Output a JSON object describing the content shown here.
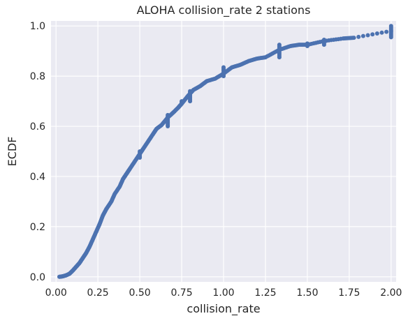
{
  "chart_data": {
    "type": "scatter",
    "title": "ALOHA collision_rate 2 stations",
    "xlabel": "collision_rate",
    "ylabel": "ECDF",
    "xlim": [
      -0.03,
      2.03
    ],
    "ylim": [
      -0.02,
      1.02
    ],
    "xticks": [
      0.0,
      0.25,
      0.5,
      0.75,
      1.0,
      1.25,
      1.5,
      1.75,
      2.0
    ],
    "xtick_labels": [
      "0.00",
      "0.25",
      "0.50",
      "0.75",
      "1.00",
      "1.25",
      "1.50",
      "1.75",
      "2.00"
    ],
    "yticks": [
      0.0,
      0.2,
      0.4,
      0.6,
      0.8,
      1.0
    ],
    "ytick_labels": [
      "0.0",
      "0.2",
      "0.4",
      "0.6",
      "0.8",
      "1.0"
    ],
    "grid": true,
    "marker_color": "#4c72b0",
    "background_color": "#eaeaf2",
    "gridline_color": "#ffffff",
    "series": [
      {
        "points": [
          {
            "x": 0.02,
            "y": 0.0
          },
          {
            "x": 0.04,
            "y": 0.002
          },
          {
            "x": 0.06,
            "y": 0.006
          },
          {
            "x": 0.08,
            "y": 0.012
          },
          {
            "x": 0.1,
            "y": 0.025
          },
          {
            "x": 0.12,
            "y": 0.04
          },
          {
            "x": 0.14,
            "y": 0.055
          },
          {
            "x": 0.16,
            "y": 0.075
          },
          {
            "x": 0.18,
            "y": 0.095
          },
          {
            "x": 0.2,
            "y": 0.12
          },
          {
            "x": 0.22,
            "y": 0.15
          },
          {
            "x": 0.24,
            "y": 0.18
          },
          {
            "x": 0.26,
            "y": 0.21
          },
          {
            "x": 0.28,
            "y": 0.245
          },
          {
            "x": 0.3,
            "y": 0.27
          },
          {
            "x": 0.33,
            "y": 0.3
          },
          {
            "x": 0.35,
            "y": 0.33
          },
          {
            "x": 0.38,
            "y": 0.36
          },
          {
            "x": 0.4,
            "y": 0.39
          },
          {
            "x": 0.42,
            "y": 0.41
          },
          {
            "x": 0.44,
            "y": 0.43
          },
          {
            "x": 0.47,
            "y": 0.46
          },
          {
            "x": 0.5,
            "y": 0.49
          },
          {
            "x": 0.52,
            "y": 0.51
          },
          {
            "x": 0.55,
            "y": 0.54
          },
          {
            "x": 0.58,
            "y": 0.57
          },
          {
            "x": 0.6,
            "y": 0.59
          },
          {
            "x": 0.63,
            "y": 0.605
          },
          {
            "x": 0.667,
            "y": 0.635
          },
          {
            "x": 0.7,
            "y": 0.655
          },
          {
            "x": 0.73,
            "y": 0.675
          },
          {
            "x": 0.75,
            "y": 0.69
          },
          {
            "x": 0.786,
            "y": 0.72
          },
          {
            "x": 0.82,
            "y": 0.745
          },
          {
            "x": 0.86,
            "y": 0.76
          },
          {
            "x": 0.9,
            "y": 0.78
          },
          {
            "x": 0.95,
            "y": 0.79
          },
          {
            "x": 1.0,
            "y": 0.81
          },
          {
            "x": 1.05,
            "y": 0.835
          },
          {
            "x": 1.1,
            "y": 0.845
          },
          {
            "x": 1.15,
            "y": 0.86
          },
          {
            "x": 1.2,
            "y": 0.87
          },
          {
            "x": 1.25,
            "y": 0.875
          },
          {
            "x": 1.333,
            "y": 0.905
          },
          {
            "x": 1.4,
            "y": 0.92
          },
          {
            "x": 1.45,
            "y": 0.925
          },
          {
            "x": 1.5,
            "y": 0.925
          },
          {
            "x": 1.6,
            "y": 0.94
          },
          {
            "x": 1.714,
            "y": 0.95
          },
          {
            "x": 1.778,
            "y": 0.953
          },
          {
            "x": 2.0,
            "y": 0.98
          }
        ],
        "vertical_runs": [
          {
            "x": 0.5,
            "y0": 0.475,
            "y1": 0.5
          },
          {
            "x": 0.667,
            "y0": 0.6,
            "y1": 0.645
          },
          {
            "x": 0.75,
            "y0": 0.69,
            "y1": 0.7
          },
          {
            "x": 0.8,
            "y0": 0.7,
            "y1": 0.74
          },
          {
            "x": 1.0,
            "y0": 0.8,
            "y1": 0.835
          },
          {
            "x": 1.333,
            "y0": 0.875,
            "y1": 0.925
          },
          {
            "x": 1.5,
            "y0": 0.92,
            "y1": 0.93
          },
          {
            "x": 1.6,
            "y0": 0.925,
            "y1": 0.945
          },
          {
            "x": 2.0,
            "y0": 0.955,
            "y1": 1.0
          }
        ]
      }
    ]
  }
}
